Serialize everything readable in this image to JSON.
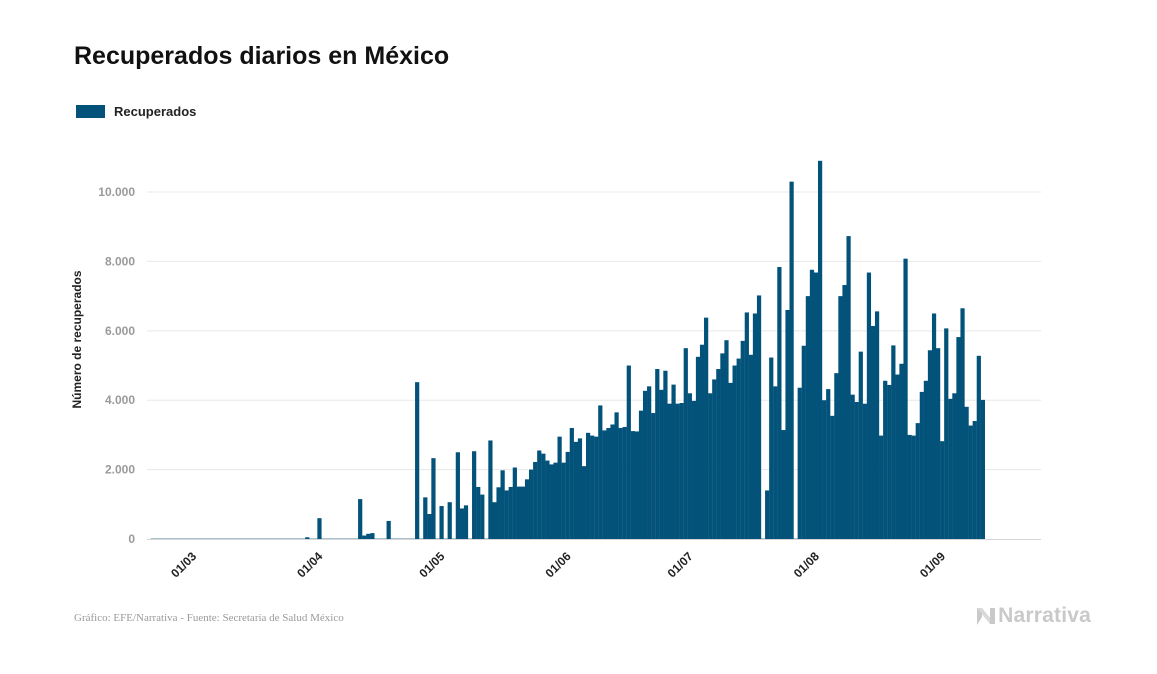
{
  "header": {
    "title": "Recuperados diarios en México"
  },
  "legend": {
    "label": "Recuperados"
  },
  "footer": {
    "source": "Gráfico: EFE/Narrativa - Fuente: Secretaría de Salud México"
  },
  "brand": {
    "name": "Narrativa"
  },
  "colors": {
    "bar": "#03527a",
    "grid": "#e8e8e8",
    "tick_text": "#9a9a9a"
  },
  "chart_data": {
    "type": "bar",
    "title": "Recuperados diarios en México",
    "ylabel": "Número de recuperados",
    "xlabel": "",
    "ylim": [
      0,
      11500
    ],
    "y_ticks": [
      0,
      2000,
      4000,
      6000,
      8000,
      10000
    ],
    "y_tick_labels": [
      "0",
      "2.000",
      "4.000",
      "6.000",
      "8.000",
      "10.000"
    ],
    "x_ticks": [
      {
        "label": "01/03",
        "day": 0
      },
      {
        "label": "01/04",
        "day": 31
      },
      {
        "label": "01/05",
        "day": 61
      },
      {
        "label": "01/06",
        "day": 92
      },
      {
        "label": "01/07",
        "day": 122
      },
      {
        "label": "01/08",
        "day": 153
      },
      {
        "label": "01/09",
        "day": 184
      }
    ],
    "series": [
      {
        "name": "Recuperados",
        "start": "2020-02-22",
        "values": [
          0,
          0,
          0,
          0,
          0,
          0,
          0,
          0,
          0,
          0,
          0,
          0,
          0,
          0,
          0,
          0,
          0,
          0,
          0,
          0,
          0,
          0,
          0,
          0,
          0,
          0,
          0,
          0,
          0,
          0,
          0,
          0,
          0,
          0,
          0,
          0,
          0,
          0,
          50,
          0,
          0,
          600,
          0,
          0,
          0,
          0,
          0,
          0,
          0,
          0,
          0,
          1150,
          100,
          150,
          170,
          0,
          0,
          0,
          520,
          0,
          0,
          0,
          0,
          0,
          0,
          4520,
          0,
          1200,
          720,
          2330,
          0,
          950,
          0,
          1060,
          0,
          2500,
          880,
          970,
          0,
          2530,
          1500,
          1280,
          0,
          2840,
          1060,
          1490,
          1980,
          1400,
          1500,
          2060,
          1510,
          1510,
          1720,
          2000,
          2220,
          2550,
          2460,
          2260,
          2150,
          2200,
          2950,
          2200,
          2510,
          3200,
          2800,
          2900,
          2100,
          3060,
          2980,
          2950,
          3850,
          3130,
          3200,
          3300,
          3650,
          3200,
          3230,
          5000,
          3110,
          3100,
          3700,
          4270,
          4400,
          3630,
          4900,
          4300,
          4850,
          3900,
          4450,
          3900,
          3920,
          5500,
          4200,
          3980,
          5250,
          5600,
          6380,
          4200,
          4600,
          4900,
          5350,
          5730,
          4500,
          5000,
          5200,
          5710,
          6530,
          5310,
          6500,
          7020,
          0,
          1400,
          5230,
          4400,
          7840,
          3140,
          6600,
          10300,
          0,
          4360,
          5570,
          7000,
          7760,
          7680,
          10900,
          4000,
          4320,
          3550,
          4780,
          7000,
          7320,
          8730,
          4160,
          3950,
          5400,
          3900,
          7680,
          6140,
          6560,
          2980,
          4560,
          4440,
          5580,
          4740,
          5050,
          8080,
          3000,
          2980,
          3340,
          4240,
          4560,
          5440,
          6500,
          5500,
          2820,
          6070,
          4040,
          4200,
          5820,
          6650,
          3810,
          3270,
          3400,
          5280,
          4010
        ]
      }
    ]
  }
}
